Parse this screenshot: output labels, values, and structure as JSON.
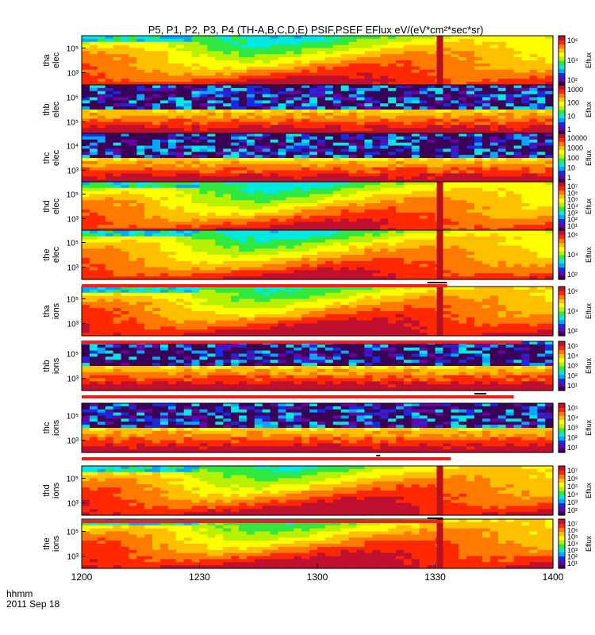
{
  "chart_data": {
    "type": "heatmap",
    "title": "P5, P1, P2, P3, P4 (TH-A,B,C,D,E) PSIF,PSEF EFlux eV/(eV*cm²*sec*sr)",
    "xlabel": "hhmm",
    "date_label": "2011 Sep 18",
    "x_ticks": [
      "1200",
      "1230",
      "1300",
      "1330",
      "1400"
    ],
    "x_range": [
      "1200",
      "1400"
    ],
    "y_scale": "log",
    "colorbar_label": "Eflux",
    "panels": [
      {
        "name": "tha elec",
        "probe": "tha",
        "species": "elec",
        "y_ticks": [
          "10⁵",
          "10³"
        ],
        "cbar_ticks": [
          "10⁶",
          "10⁴",
          "10²"
        ],
        "kind": "esa_elec",
        "vline": 1331
      },
      {
        "name": "thb elec",
        "probe": "thb",
        "species": "elec",
        "y_ticks": [
          "10⁶",
          "10⁵"
        ],
        "cbar_ticks": [
          "1000",
          "100",
          "10",
          "1"
        ],
        "kind": "sparse_elec"
      },
      {
        "name": "thc elec",
        "probe": "thc",
        "species": "elec",
        "y_ticks": [
          "10⁴",
          "10³"
        ],
        "cbar_ticks": [
          "10000",
          "1000",
          "100",
          "10",
          "1"
        ],
        "kind": "sparse_elec2"
      },
      {
        "name": "thd elec",
        "probe": "thd",
        "species": "elec",
        "y_ticks": [
          "10⁵",
          "10³"
        ],
        "cbar_ticks": [
          "10⁷",
          "10⁶",
          "10⁵",
          "10⁴",
          "10³",
          "10²",
          "10¹"
        ],
        "kind": "esa_elec2",
        "vline": 1331
      },
      {
        "name": "the elec",
        "probe": "the",
        "species": "elec",
        "y_ticks": [
          "10⁵",
          "10³"
        ],
        "cbar_ticks": [
          "10⁶",
          "10⁴",
          "10²"
        ],
        "kind": "esa_elec3",
        "vline": 1331
      },
      {
        "name": "tha ions",
        "probe": "tha",
        "species": "ions",
        "y_ticks": [
          "10⁵",
          "10³"
        ],
        "cbar_ticks": [
          "10⁶",
          "10⁴",
          "10²"
        ],
        "kind": "esa_ion",
        "vline": 1331
      },
      {
        "name": "thb ions",
        "probe": "thb",
        "species": "ions",
        "y_ticks": [
          "10⁵",
          "10³"
        ],
        "cbar_ticks": [
          "10⁵",
          "10⁴",
          "10³",
          "10²",
          "10¹"
        ],
        "kind": "sparse_ion"
      },
      {
        "name": "thc ions",
        "probe": "thc",
        "species": "ions",
        "y_ticks": [
          "10⁵",
          "10³"
        ],
        "cbar_ticks": [
          "10⁵",
          "10⁴",
          "10³",
          "10²",
          "10¹"
        ],
        "kind": "sparse_ion2"
      },
      {
        "name": "thd ions",
        "probe": "thd",
        "species": "ions",
        "y_ticks": [
          "10⁵",
          "10³"
        ],
        "cbar_ticks": [
          "10⁷",
          "10⁶",
          "10⁵",
          "10⁴",
          "10³",
          "10²"
        ],
        "kind": "esa_ion2",
        "vline": 1331
      },
      {
        "name": "the ions",
        "probe": "the",
        "species": "ions",
        "y_ticks": [
          "10⁵",
          "10³"
        ],
        "cbar_ticks": [
          "10⁷",
          "10⁶",
          "10⁵",
          "10⁴",
          "10³",
          "10²",
          "10¹"
        ],
        "kind": "esa_ion3",
        "vline": 1331
      }
    ],
    "mode_bars": [
      {
        "after_panel": 4,
        "red_end": "1333",
        "black": [
          "1328",
          "1333"
        ]
      },
      {
        "after_panel": 5,
        "red_end": "1352",
        "black": []
      },
      {
        "after_panel": 6,
        "red_end": "1350",
        "black": [
          "1340",
          "1343"
        ]
      },
      {
        "after_panel": 7,
        "red_end": "1334",
        "black": [
          "1315",
          "1316"
        ]
      },
      {
        "after_panel": 8,
        "red_end": "1332",
        "black": [
          "1328",
          "1332"
        ]
      }
    ],
    "colormap": [
      "#3a0058",
      "#6a00a8",
      "#1a2ae0",
      "#00a8ff",
      "#00e8e0",
      "#30e840",
      "#b8f000",
      "#ffff00",
      "#ffc000",
      "#ff7a00",
      "#ff2800",
      "#c01030"
    ]
  }
}
